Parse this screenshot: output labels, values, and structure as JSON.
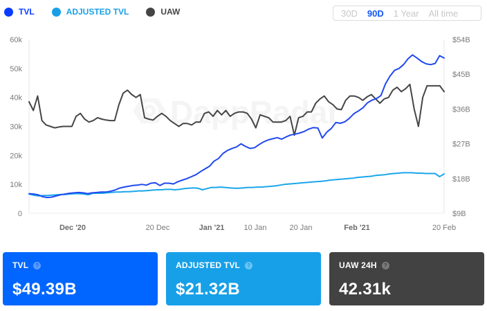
{
  "legend": {
    "items": [
      {
        "label": "TVL",
        "color": "#0a3cff"
      },
      {
        "label": "ADJUSTED TVL",
        "color": "#17a0e8"
      },
      {
        "label": "UAW",
        "color": "#454545"
      }
    ]
  },
  "range_selector": {
    "options": [
      {
        "label": "30D",
        "active": false
      },
      {
        "label": "90D",
        "active": true
      },
      {
        "label": "1 Year",
        "active": false
      },
      {
        "label": "All time",
        "active": false
      }
    ]
  },
  "watermark": "DappRadar",
  "cards": [
    {
      "title": "TVL",
      "value": "$49.39B",
      "bg": "#0066ff",
      "help_icon": "question-circle-icon"
    },
    {
      "title": "ADJUSTED TVL",
      "value": "$21.32B",
      "bg": "#17a0e8",
      "help_icon": "question-circle-icon"
    },
    {
      "title": "UAW 24H",
      "value": "42.31k",
      "bg": "#424242",
      "help_icon": "question-circle-icon"
    }
  ],
  "chart_data": {
    "type": "line",
    "title": "",
    "x_range": [
      "22 Nov 2020",
      "21 Feb 2021"
    ],
    "x_ticks": [
      {
        "label": "Dec '20",
        "pos": 0.105,
        "bold": true
      },
      {
        "label": "20 Dec",
        "pos": 0.31,
        "bold": false
      },
      {
        "label": "Jan '21",
        "pos": 0.44,
        "bold": true
      },
      {
        "label": "10 Jan",
        "pos": 0.545,
        "bold": false
      },
      {
        "label": "20 Jan",
        "pos": 0.655,
        "bold": false
      },
      {
        "label": "Feb '21",
        "pos": 0.79,
        "bold": true
      },
      {
        "label": "20 Feb",
        "pos": 1.0,
        "bold": false
      }
    ],
    "y_left": {
      "label": "UAW",
      "ticks": [
        "0",
        "10k",
        "20k",
        "30k",
        "40k",
        "50k",
        "60k"
      ],
      "range": [
        0,
        60000
      ]
    },
    "y_right": {
      "label": "TVL",
      "ticks": [
        "$9B",
        "$18B",
        "$27B",
        "$36B",
        "$45B",
        "$54B"
      ],
      "range": [
        9,
        54
      ]
    },
    "grid": false,
    "legend_position": "top-left",
    "series": [
      {
        "name": "UAW",
        "axis": "left",
        "unit": "k",
        "color": "#454545",
        "values": [
          38.5,
          35.5,
          40.5,
          32,
          30.5,
          30,
          29.5,
          29.8,
          30,
          30,
          30,
          33.5,
          34.5,
          32.5,
          31.5,
          32,
          33,
          32.5,
          32.2,
          32,
          32,
          37.5,
          41.5,
          42.5,
          41,
          40,
          41,
          33,
          32.5,
          32.2,
          33.5,
          34.5,
          33.5,
          32,
          31,
          30,
          31,
          31,
          30.5,
          31.5,
          31.5,
          34.5,
          35,
          33.5,
          35.5,
          34,
          35.5,
          33.5,
          34.5,
          35,
          35,
          34.5,
          32.5,
          29.5,
          34,
          33.5,
          33,
          31.5,
          31.5,
          31.5,
          32,
          33.5,
          27,
          33,
          33.5,
          35,
          35,
          38,
          39.5,
          40.5,
          38.5,
          37.5,
          36,
          35.8,
          39,
          40.5,
          40.5,
          40,
          39,
          40.2,
          41,
          39.5,
          38,
          39.5,
          40,
          42.5,
          43.5,
          42,
          43,
          44.5,
          36,
          30,
          40,
          44,
          44,
          44,
          44,
          42
        ]
      },
      {
        "name": "TVL",
        "axis": "right",
        "unit": "$B",
        "color": "#1f47f0",
        "values": [
          14.1,
          14,
          13.8,
          13.3,
          13.1,
          13.2,
          13.5,
          13.8,
          14,
          14.2,
          14.3,
          14.4,
          14.3,
          14.1,
          14.3,
          14.4,
          14.5,
          14.5,
          14.7,
          15,
          15.5,
          15.8,
          16,
          16.2,
          16.3,
          16.5,
          16.3,
          16.8,
          16.9,
          16.2,
          16.8,
          16.8,
          16.6,
          17.2,
          17.6,
          18,
          18.5,
          19,
          19.8,
          20.5,
          21.2,
          22.5,
          23.2,
          24.5,
          25.3,
          25.8,
          26.2,
          27,
          26.3,
          25.8,
          26,
          26.8,
          27.5,
          28,
          28.3,
          28.6,
          28.2,
          28.8,
          29.3,
          29.5,
          29.8,
          30.2,
          30.8,
          31.2,
          31.1,
          28.5,
          30,
          31,
          32.5,
          32.3,
          32.7,
          33.6,
          34.8,
          35.5,
          36.3,
          37.6,
          38.3,
          38.7,
          39.5,
          42.5,
          44.5,
          46,
          46.5,
          47.5,
          49,
          50,
          49.2,
          48.3,
          47.7,
          47.5,
          47.8,
          49.8,
          49.2
        ]
      },
      {
        "name": "ADJUSTED TVL",
        "axis": "right",
        "unit": "$B",
        "color": "#1aa6ea",
        "values": [
          14,
          13.7,
          13.5,
          13.6,
          13.6,
          13.7,
          13.8,
          13.9,
          13.9,
          14,
          14.1,
          14.1,
          14,
          13.8,
          14.2,
          14.2,
          14.2,
          14.3,
          14.4,
          14.5,
          14.5,
          14.6,
          14.6,
          14.7,
          14.8,
          14.8,
          14.9,
          15,
          15.1,
          15.1,
          15.2,
          15.2,
          15.1,
          15.2,
          15.4,
          15.5,
          15.6,
          15.5,
          15.1,
          15.4,
          15.7,
          15.7,
          15.8,
          15.7,
          15.6,
          15.5,
          15.5,
          15.6,
          15.7,
          15.7,
          15.8,
          15.8,
          15.9,
          16,
          16.1,
          16.3,
          16.5,
          16.6,
          16.7,
          16.8,
          16.9,
          17,
          17.1,
          17.2,
          17.3,
          17.4,
          17.6,
          17.7,
          17.8,
          17.9,
          18,
          18.1,
          18.3,
          18.4,
          18.5,
          18.6,
          18.8,
          18.9,
          19,
          19.2,
          19.3,
          19.4,
          19.5,
          19.5,
          19.5,
          19.4,
          19.4,
          19.3,
          19.3,
          19.3,
          18.5,
          19.2
        ]
      }
    ]
  }
}
